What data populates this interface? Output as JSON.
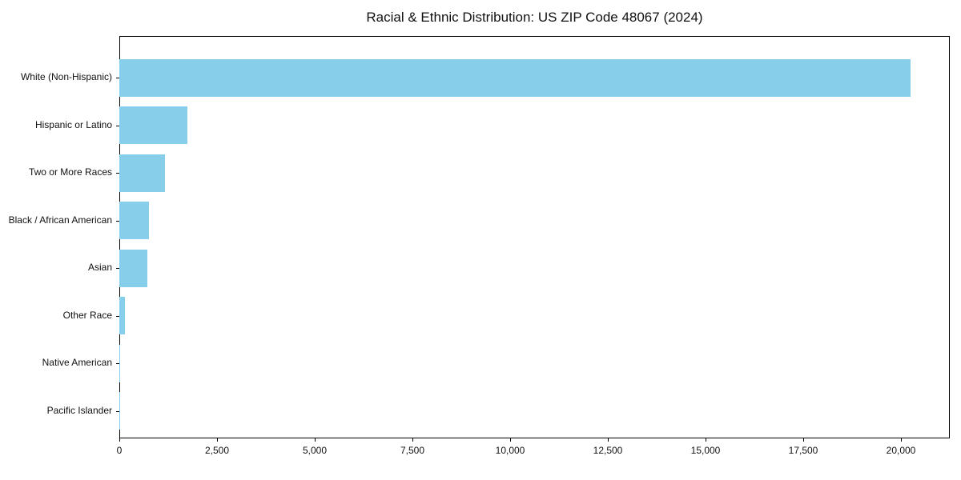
{
  "chart_data": {
    "type": "bar",
    "orientation": "horizontal",
    "title": "Racial & Ethnic Distribution: US ZIP Code 48067 (2024)",
    "categories": [
      "White (Non-Hispanic)",
      "Hispanic or Latino",
      "Two or More Races",
      "Black / African American",
      "Asian",
      "Other Race",
      "Native American",
      "Pacific Islander"
    ],
    "values": [
      20240,
      1750,
      1160,
      760,
      715,
      145,
      10,
      5
    ],
    "xlabel": "",
    "ylabel": "",
    "xlim": [
      0,
      21250
    ],
    "xticks": [
      0,
      2500,
      5000,
      7500,
      10000,
      12500,
      15000,
      17500,
      20000
    ],
    "xtick_labels": [
      "0",
      "2,500",
      "5,000",
      "7,500",
      "10,000",
      "12,500",
      "15,000",
      "17,500",
      "20,000"
    ],
    "bar_color": "#87CEEB",
    "background_color": "#ffffff",
    "spine_color": "#000000",
    "grid": false,
    "legend": null
  }
}
